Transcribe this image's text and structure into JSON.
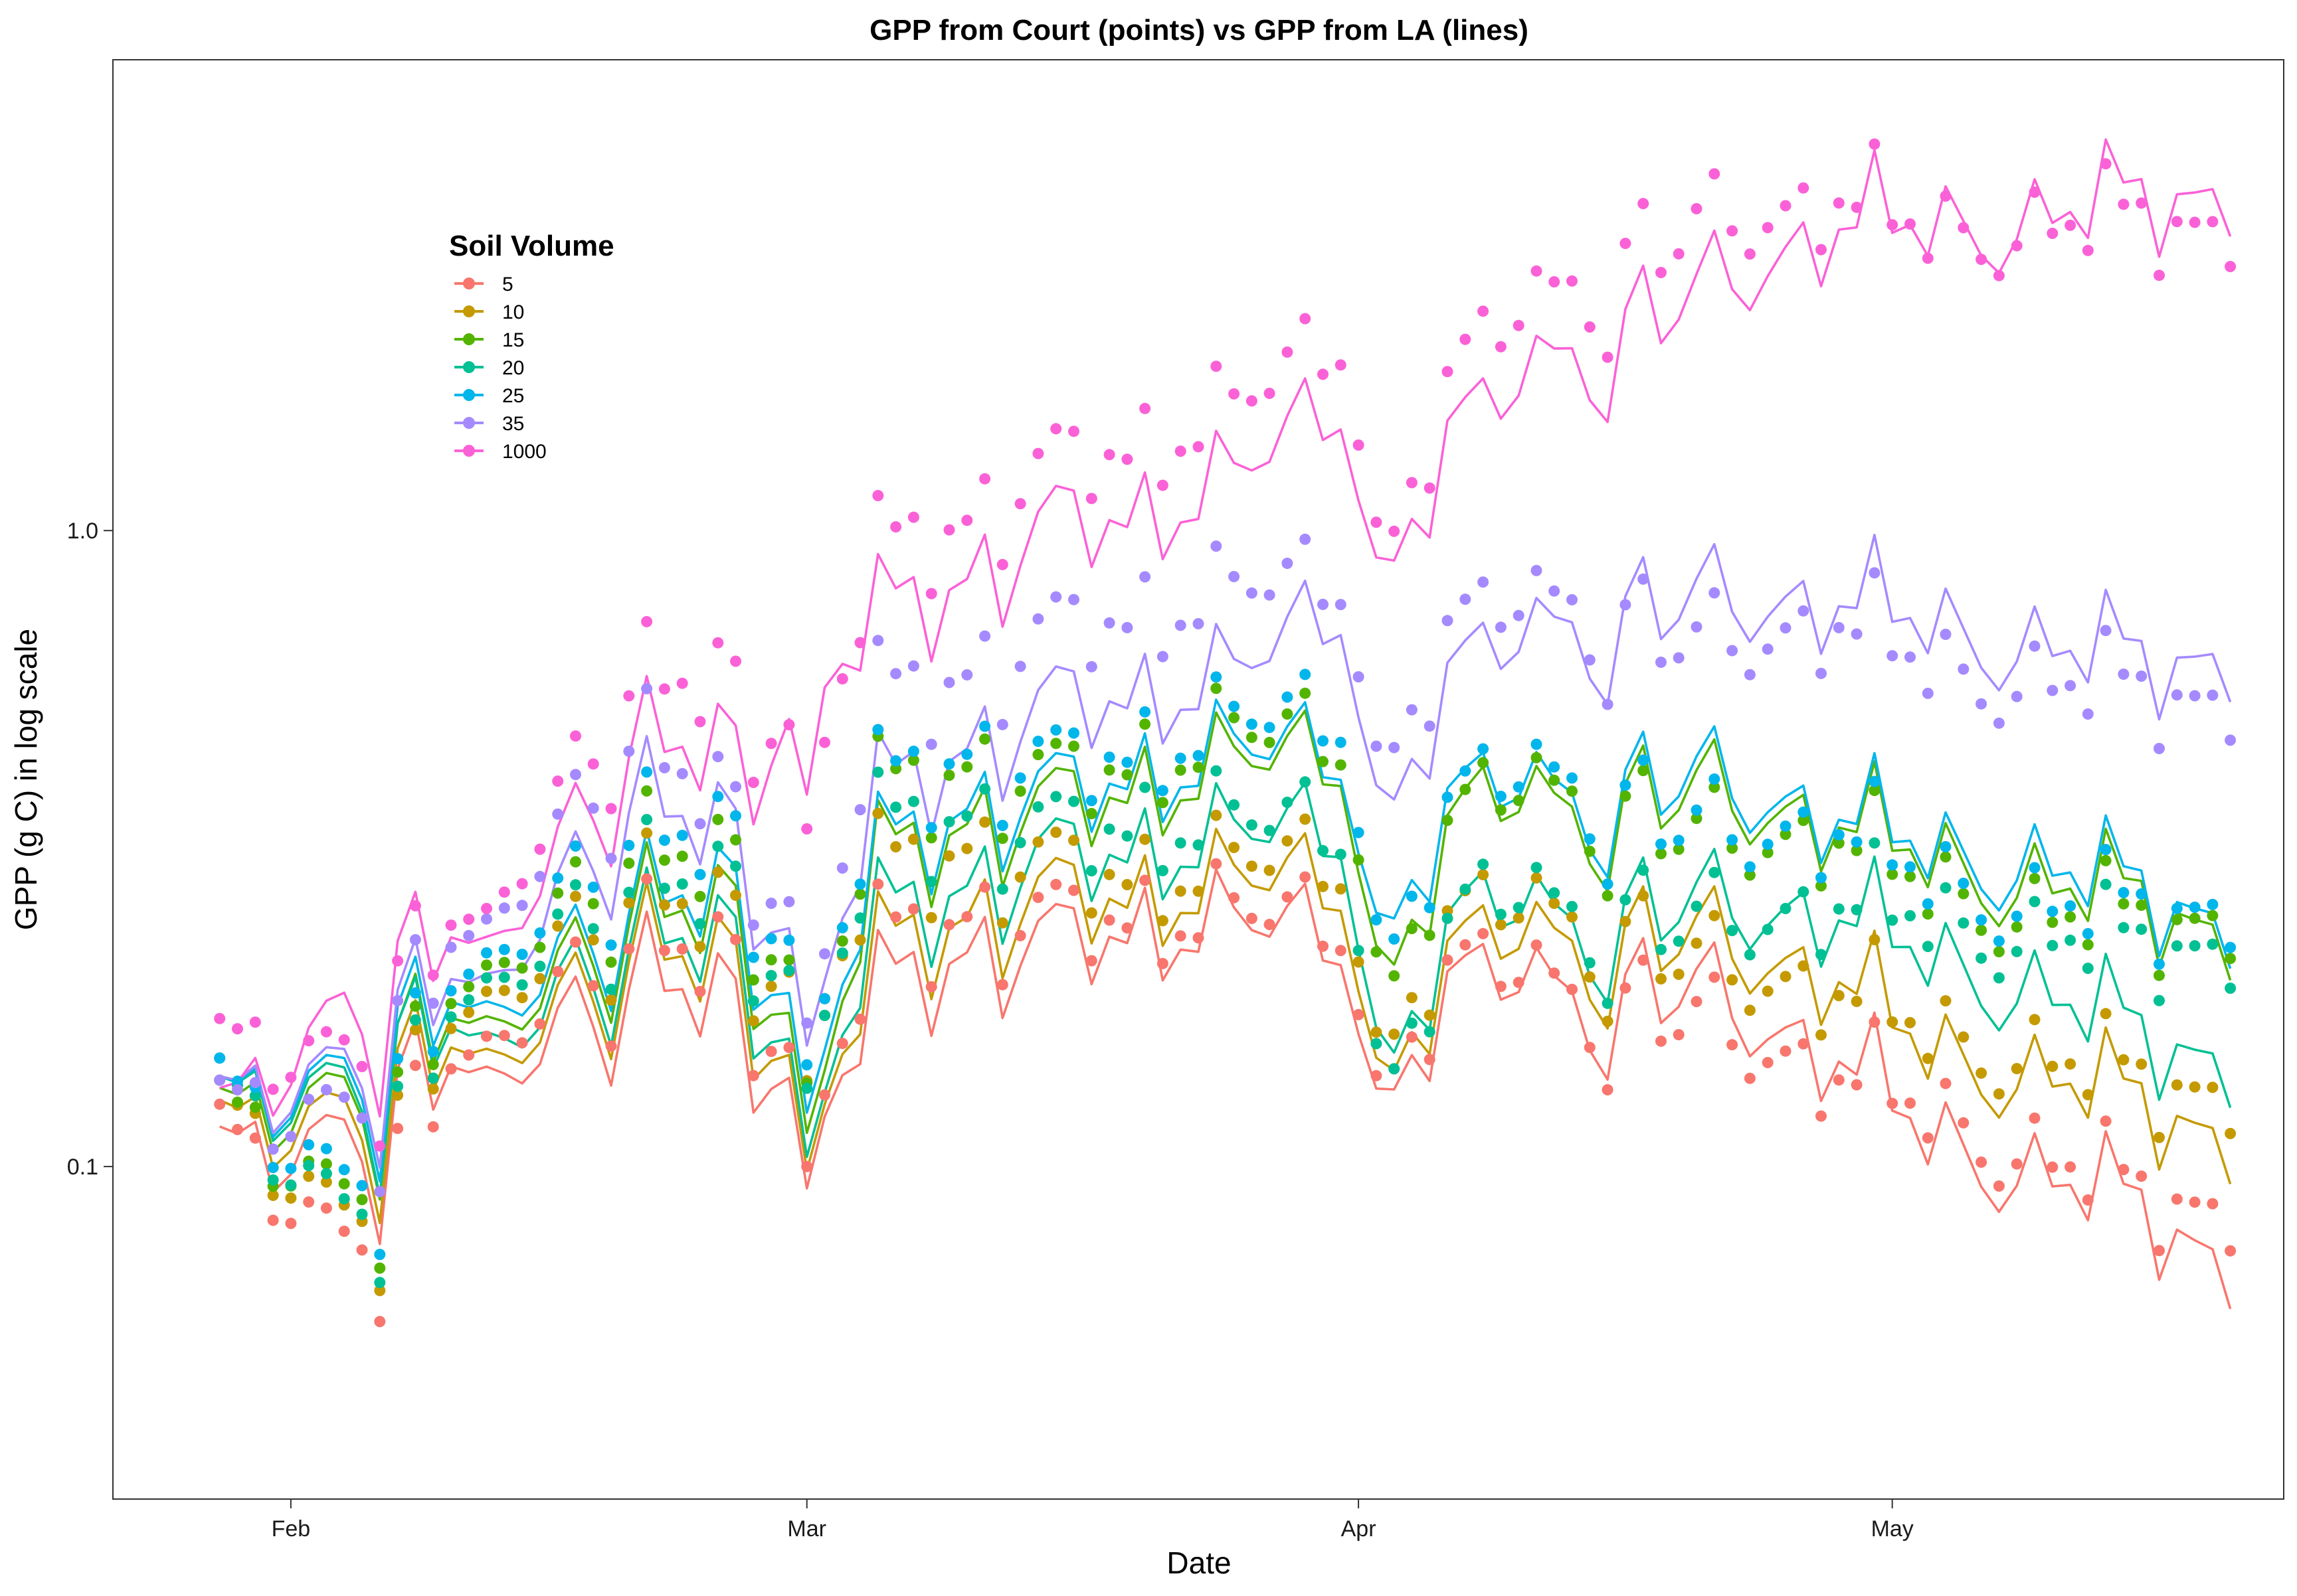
{
  "chart_data": {
    "type": "line",
    "title": "GPP from Court (points) vs GPP from LA (lines)",
    "xlabel": "Date",
    "ylabel": "GPP (g C) in log scale",
    "y_scale": "log10",
    "ylim": [
      0.03,
      5.5
    ],
    "xlim": [
      "2000-01-22",
      "2000-05-23"
    ],
    "x_ticks": [
      "2000-02-01",
      "2000-03-01",
      "2000-04-01",
      "2000-05-01"
    ],
    "x_tick_labels": [
      "Feb",
      "Mar",
      "Apr",
      "May"
    ],
    "y_ticks": [
      0.1,
      1.0
    ],
    "y_tick_labels": [
      "0.1",
      "1.0"
    ],
    "legend_title": "Soil Volume",
    "legend_position": "top-left",
    "grid": false,
    "marks": "points = Court, lines = LA",
    "series_keys": [
      "5",
      "10",
      "15",
      "20",
      "25",
      "35",
      "1000"
    ],
    "series_colors": [
      "#F8766D",
      "#C49A00",
      "#53B400",
      "#00C094",
      "#00B6EB",
      "#A58AFF",
      "#FB61D7"
    ],
    "ref_1000": [
      [
        "2000-01-28",
        0.115,
        0.15
      ],
      [
        "2000-02-04",
        0.19,
        0.16
      ],
      [
        "2000-02-12",
        0.24,
        0.27
      ],
      [
        "2000-02-20",
        0.44,
        0.55
      ],
      [
        "2000-02-26",
        0.5,
        0.63
      ],
      [
        "2000-03-02",
        0.52,
        0.43
      ],
      [
        "2000-03-05",
        0.78,
        0.98
      ],
      [
        "2000-03-10",
        0.85,
        1.05
      ],
      [
        "2000-03-15",
        1.0,
        1.25
      ],
      [
        "2000-03-20",
        1.08,
        1.38
      ],
      [
        "2000-03-25",
        1.2,
        1.55
      ],
      [
        "2000-03-31",
        1.6,
        2.0
      ],
      [
        "2000-04-03",
        0.95,
        1.05
      ],
      [
        "2000-04-08",
        1.55,
        2.0
      ],
      [
        "2000-04-13",
        2.05,
        2.6
      ],
      [
        "2000-04-20",
        2.35,
        3.0
      ],
      [
        "2000-04-28",
        3.05,
        3.35
      ],
      [
        "2000-05-03",
        2.95,
        2.9
      ],
      [
        "2000-05-09",
        3.1,
        3.0
      ],
      [
        "2000-05-15",
        3.3,
        3.05
      ],
      [
        "2000-05-20",
        3.4,
        3.0
      ]
    ],
    "ref_35": [
      [
        "2000-01-28",
        0.12,
        0.12
      ],
      [
        "2000-02-04",
        0.155,
        0.13
      ],
      [
        "2000-02-12",
        0.21,
        0.26
      ],
      [
        "2000-02-20",
        0.36,
        0.45
      ],
      [
        "2000-02-26",
        0.37,
        0.4
      ],
      [
        "2000-03-02",
        0.18,
        0.2
      ],
      [
        "2000-03-05",
        0.41,
        0.58
      ],
      [
        "2000-03-10",
        0.46,
        0.6
      ],
      [
        "2000-03-15",
        0.52,
        0.68
      ],
      [
        "2000-03-20",
        0.56,
        0.75
      ],
      [
        "2000-03-25",
        0.59,
        0.8
      ],
      [
        "2000-03-31",
        0.76,
        0.84
      ],
      [
        "2000-04-03",
        0.4,
        0.48
      ],
      [
        "2000-04-08",
        0.64,
        0.75
      ],
      [
        "2000-04-13",
        0.76,
        0.82
      ],
      [
        "2000-04-20",
        0.78,
        0.66
      ],
      [
        "2000-04-28",
        0.78,
        0.72
      ],
      [
        "2000-05-03",
        0.7,
        0.6
      ],
      [
        "2000-05-09",
        0.66,
        0.58
      ],
      [
        "2000-05-15",
        0.62,
        0.55
      ],
      [
        "2000-05-20",
        0.63,
        0.54
      ]
    ],
    "ref_25": [
      [
        "2000-01-28",
        0.12,
        0.13
      ],
      [
        "2000-02-04",
        0.15,
        0.1
      ],
      [
        "2000-02-12",
        0.19,
        0.23
      ],
      [
        "2000-02-20",
        0.25,
        0.32
      ],
      [
        "2000-02-26",
        0.3,
        0.36
      ],
      [
        "2000-03-02",
        0.14,
        0.17
      ],
      [
        "2000-03-05",
        0.33,
        0.42
      ],
      [
        "2000-03-10",
        0.37,
        0.45
      ],
      [
        "2000-03-15",
        0.38,
        0.42
      ],
      [
        "2000-03-20",
        0.42,
        0.46
      ],
      [
        "2000-03-25",
        0.45,
        0.5
      ],
      [
        "2000-03-31",
        0.45,
        0.51
      ],
      [
        "2000-04-03",
        0.26,
        0.24
      ],
      [
        "2000-04-08",
        0.4,
        0.41
      ],
      [
        "2000-04-13",
        0.41,
        0.43
      ],
      [
        "2000-04-20",
        0.41,
        0.34
      ],
      [
        "2000-04-28",
        0.36,
        0.34
      ],
      [
        "2000-05-03",
        0.31,
        0.28
      ],
      [
        "2000-05-09",
        0.3,
        0.26
      ],
      [
        "2000-05-15",
        0.27,
        0.25
      ],
      [
        "2000-05-20",
        0.24,
        0.255
      ]
    ],
    "ref_15": [
      [
        "2000-01-28",
        0.115,
        0.12
      ],
      [
        "2000-02-04",
        0.14,
        0.095
      ],
      [
        "2000-02-12",
        0.18,
        0.22
      ],
      [
        "2000-02-20",
        0.24,
        0.3
      ],
      [
        "2000-02-26",
        0.28,
        0.33
      ],
      [
        "2000-03-02",
        0.13,
        0.16
      ],
      [
        "2000-03-05",
        0.32,
        0.41
      ],
      [
        "2000-03-10",
        0.35,
        0.43
      ],
      [
        "2000-03-15",
        0.36,
        0.4
      ],
      [
        "2000-03-20",
        0.4,
        0.44
      ],
      [
        "2000-03-25",
        0.43,
        0.48
      ],
      [
        "2000-03-31",
        0.44,
        0.47
      ],
      [
        "2000-04-03",
        0.22,
        0.21
      ],
      [
        "2000-04-08",
        0.38,
        0.39
      ],
      [
        "2000-04-13",
        0.39,
        0.41
      ],
      [
        "2000-04-20",
        0.39,
        0.33
      ],
      [
        "2000-04-28",
        0.35,
        0.33
      ],
      [
        "2000-05-03",
        0.3,
        0.27
      ],
      [
        "2000-05-09",
        0.28,
        0.25
      ],
      [
        "2000-05-15",
        0.26,
        0.24
      ],
      [
        "2000-05-20",
        0.23,
        0.245
      ]
    ],
    "ref_20": [
      [
        "2000-01-28",
        0.12,
        0.13
      ],
      [
        "2000-02-04",
        0.145,
        0.09
      ],
      [
        "2000-02-12",
        0.17,
        0.21
      ],
      [
        "2000-02-20",
        0.22,
        0.27
      ],
      [
        "2000-02-26",
        0.25,
        0.3
      ],
      [
        "2000-03-02",
        0.12,
        0.16
      ],
      [
        "2000-03-05",
        0.26,
        0.36
      ],
      [
        "2000-03-10",
        0.28,
        0.36
      ],
      [
        "2000-03-15",
        0.3,
        0.33
      ],
      [
        "2000-03-20",
        0.32,
        0.35
      ],
      [
        "2000-03-25",
        0.33,
        0.35
      ],
      [
        "2000-03-31",
        0.34,
        0.34
      ],
      [
        "2000-04-03",
        0.16,
        0.15
      ],
      [
        "2000-04-08",
        0.26,
        0.27
      ],
      [
        "2000-04-13",
        0.26,
        0.27
      ],
      [
        "2000-04-20",
        0.26,
        0.24
      ],
      [
        "2000-04-28",
        0.25,
        0.26
      ],
      [
        "2000-05-03",
        0.21,
        0.24
      ],
      [
        "2000-05-09",
        0.19,
        0.23
      ],
      [
        "2000-05-15",
        0.16,
        0.22
      ],
      [
        "2000-05-20",
        0.145,
        0.22
      ]
    ],
    "ref_10": [
      [
        "2000-01-28",
        0.11,
        0.12
      ],
      [
        "2000-02-04",
        0.13,
        0.088
      ],
      [
        "2000-02-12",
        0.16,
        0.2
      ],
      [
        "2000-02-20",
        0.21,
        0.26
      ],
      [
        "2000-02-26",
        0.23,
        0.27
      ],
      [
        "2000-03-02",
        0.115,
        0.17
      ],
      [
        "2000-03-05",
        0.23,
        0.31
      ],
      [
        "2000-03-10",
        0.25,
        0.32
      ],
      [
        "2000-03-15",
        0.26,
        0.29
      ],
      [
        "2000-03-20",
        0.27,
        0.29
      ],
      [
        "2000-03-25",
        0.28,
        0.3
      ],
      [
        "2000-03-31",
        0.28,
        0.3
      ],
      [
        "2000-04-03",
        0.15,
        0.17
      ],
      [
        "2000-04-08",
        0.23,
        0.26
      ],
      [
        "2000-04-13",
        0.24,
        0.26
      ],
      [
        "2000-04-20",
        0.23,
        0.21
      ],
      [
        "2000-04-28",
        0.2,
        0.19
      ],
      [
        "2000-05-03",
        0.15,
        0.16
      ],
      [
        "2000-05-09",
        0.14,
        0.15
      ],
      [
        "2000-05-15",
        0.125,
        0.135
      ],
      [
        "2000-05-20",
        0.11,
        0.13
      ]
    ],
    "ref_5": [
      [
        "2000-01-28",
        0.1,
        0.11
      ],
      [
        "2000-02-04",
        0.12,
        0.08
      ],
      [
        "2000-02-12",
        0.15,
        0.17
      ],
      [
        "2000-02-20",
        0.19,
        0.22
      ],
      [
        "2000-02-26",
        0.2,
        0.23
      ],
      [
        "2000-03-02",
        0.11,
        0.12
      ],
      [
        "2000-03-05",
        0.2,
        0.24
      ],
      [
        "2000-03-10",
        0.22,
        0.25
      ],
      [
        "2000-03-15",
        0.22,
        0.24
      ],
      [
        "2000-03-20",
        0.24,
        0.25
      ],
      [
        "2000-03-25",
        0.24,
        0.25
      ],
      [
        "2000-03-31",
        0.23,
        0.24
      ],
      [
        "2000-04-03",
        0.14,
        0.15
      ],
      [
        "2000-04-08",
        0.2,
        0.21
      ],
      [
        "2000-04-13",
        0.2,
        0.2
      ],
      [
        "2000-04-20",
        0.19,
        0.17
      ],
      [
        "2000-04-28",
        0.15,
        0.14
      ],
      [
        "2000-05-03",
        0.11,
        0.12
      ],
      [
        "2000-05-09",
        0.098,
        0.105
      ],
      [
        "2000-05-15",
        0.085,
        0.09
      ],
      [
        "2000-05-20",
        0.07,
        0.085
      ]
    ]
  }
}
